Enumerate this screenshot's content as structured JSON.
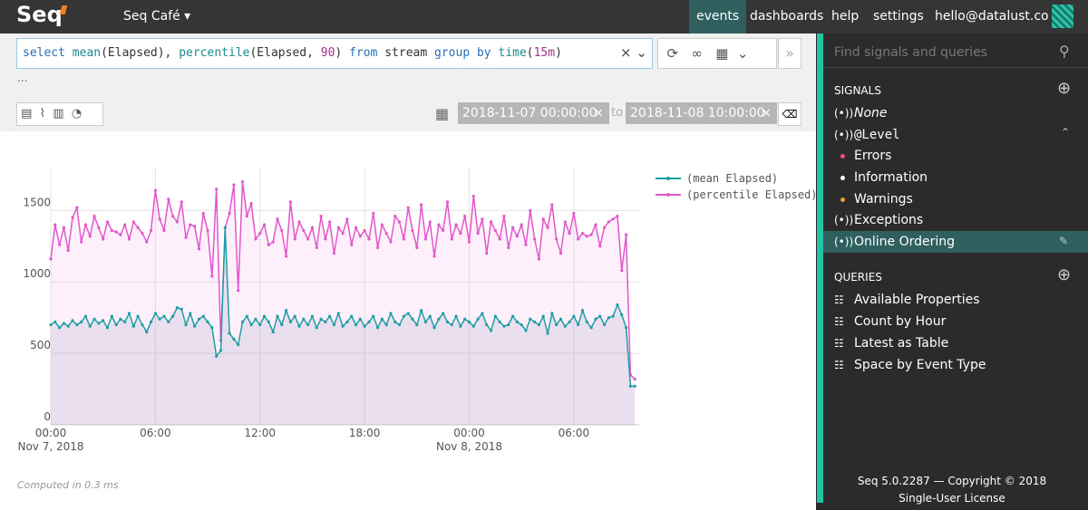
{
  "header": {
    "logo": "Seq",
    "workspace": "Seq Café",
    "nav": [
      "events",
      "dashboards",
      "help",
      "settings",
      "hello@datalust.co"
    ],
    "active_nav": 0
  },
  "query": {
    "tokens": [
      {
        "text": "select",
        "color": "#2a6fb5"
      },
      {
        "text": " ",
        "color": "#333333"
      },
      {
        "text": "mean",
        "color": "#1b8a8f"
      },
      {
        "text": "(Elapsed), ",
        "color": "#333333"
      },
      {
        "text": "percentile",
        "color": "#1b8a8f"
      },
      {
        "text": "(Elapsed, ",
        "color": "#333333"
      },
      {
        "text": "90",
        "color": "#a0308f"
      },
      {
        "text": ") ",
        "color": "#333333"
      },
      {
        "text": "from",
        "color": "#2a6fb5"
      },
      {
        "text": " stream ",
        "color": "#333333"
      },
      {
        "text": "group by",
        "color": "#2a6fb5"
      },
      {
        "text": " ",
        "color": "#333333"
      },
      {
        "text": "time",
        "color": "#1b8a8f"
      },
      {
        "text": "(",
        "color": "#333333"
      },
      {
        "text": "15m",
        "color": "#a0308f"
      },
      {
        "text": ")",
        "color": "#333333"
      }
    ],
    "more": "...",
    "date_from": "2018-11-07 00:00:00",
    "date_sep": "to",
    "date_to": "2018-11-08 10:00:00"
  },
  "chart_data": {
    "type": "line",
    "x": [
      0,
      0.25,
      0.5,
      0.75,
      1,
      1.25,
      1.5,
      1.75,
      2,
      2.25,
      2.5,
      2.75,
      3,
      3.25,
      3.5,
      3.75,
      4,
      4.25,
      4.5,
      4.75,
      5,
      5.25,
      5.5,
      5.75,
      6,
      6.25,
      6.5,
      6.75,
      7,
      7.25,
      7.5,
      7.75,
      8,
      8.25,
      8.5,
      8.75,
      9,
      9.25,
      9.5,
      9.75,
      10,
      10.25,
      10.5,
      10.75,
      11,
      11.25,
      11.5,
      11.75,
      12,
      12.25,
      12.5,
      12.75,
      13,
      13.25,
      13.5,
      13.75,
      14,
      14.25,
      14.5,
      14.75,
      15,
      15.25,
      15.5,
      15.75,
      16,
      16.25,
      16.5,
      16.75,
      17,
      17.25,
      17.5,
      17.75,
      18,
      18.25,
      18.5,
      18.75,
      19,
      19.25,
      19.5,
      19.75,
      20,
      20.25,
      20.5,
      20.75,
      21,
      21.25,
      21.5,
      21.75,
      22,
      22.25,
      22.5,
      22.75,
      23,
      23.25,
      23.5,
      23.75,
      24,
      24.25,
      24.5,
      24.75,
      25,
      25.25,
      25.5,
      25.75,
      26,
      26.25,
      26.5,
      26.75,
      27,
      27.25,
      27.5,
      27.75,
      28,
      28.25,
      28.5,
      28.75,
      29,
      29.25,
      29.5,
      29.75,
      30,
      30.25,
      30.5,
      30.75,
      31,
      31.25,
      31.5,
      31.75,
      32,
      32.25,
      32.5,
      32.75,
      33,
      33.25,
      33.5
    ],
    "series": [
      {
        "name": "(mean Elapsed)",
        "color": "#1f9ea3",
        "fill": "rgba(120,120,180,0.14)",
        "values": [
          700,
          720,
          680,
          710,
          690,
          730,
          700,
          720,
          760,
          690,
          740,
          710,
          730,
          680,
          760,
          700,
          740,
          720,
          780,
          690,
          760,
          700,
          650,
          720,
          780,
          740,
          760,
          720,
          760,
          820,
          810,
          700,
          780,
          690,
          740,
          760,
          720,
          680,
          480,
          520,
          1380,
          640,
          600,
          560,
          720,
          760,
          700,
          740,
          700,
          760,
          720,
          650,
          760,
          700,
          800,
          720,
          760,
          690,
          740,
          700,
          760,
          680,
          740,
          720,
          760,
          700,
          780,
          690,
          720,
          760,
          700,
          740,
          690,
          720,
          760,
          680,
          740,
          700,
          780,
          720,
          700,
          760,
          780,
          740,
          700,
          800,
          720,
          760,
          680,
          740,
          780,
          720,
          700,
          760,
          690,
          740,
          720,
          690,
          740,
          780,
          700,
          660,
          760,
          720,
          690,
          700,
          760,
          720,
          700,
          660,
          740,
          720,
          700,
          760,
          640,
          780,
          700,
          740,
          690,
          720,
          760,
          700,
          800,
          720,
          680,
          740,
          760,
          700,
          750,
          760,
          840,
          770,
          680,
          270,
          270
        ]
      },
      {
        "name": "(percentile Elapsed)",
        "color": "#e357cc",
        "fill": "rgba(240,140,220,0.13)",
        "values": [
          1160,
          1400,
          1260,
          1380,
          1220,
          1450,
          1520,
          1280,
          1400,
          1320,
          1460,
          1380,
          1300,
          1420,
          1360,
          1350,
          1330,
          1400,
          1300,
          1420,
          1380,
          1340,
          1280,
          1360,
          1640,
          1440,
          1360,
          1580,
          1460,
          1420,
          1560,
          1310,
          1400,
          1390,
          1230,
          1480,
          1360,
          1040,
          1650,
          590,
          1380,
          1480,
          1680,
          940,
          1700,
          1460,
          1550,
          1300,
          1340,
          1400,
          1260,
          1280,
          1440,
          1360,
          1180,
          1560,
          1300,
          1420,
          1360,
          1300,
          1380,
          1240,
          1460,
          1300,
          1420,
          1200,
          1380,
          1340,
          1440,
          1260,
          1380,
          1320,
          1360,
          1300,
          1480,
          1240,
          1400,
          1340,
          1280,
          1460,
          1420,
          1300,
          1520,
          1360,
          1240,
          1540,
          1300,
          1420,
          1180,
          1400,
          1360,
          1560,
          1300,
          1400,
          1340,
          1460,
          1280,
          1600,
          1340,
          1440,
          1200,
          1420,
          1360,
          1300,
          1460,
          1240,
          1380,
          1320,
          1400,
          1260,
          1500,
          1300,
          1160,
          1440,
          1380,
          1540,
          1300,
          1200,
          1420,
          1340,
          1480,
          1300,
          1340,
          1320,
          1330,
          1400,
          1250,
          1380,
          1420,
          1440,
          1460,
          1080,
          1330,
          350,
          320
        ]
      }
    ],
    "xlim": [
      0,
      33.75
    ],
    "xticks": [
      {
        "value": 0,
        "label": "00:00"
      },
      {
        "value": 6,
        "label": "06:00"
      },
      {
        "value": 12,
        "label": "12:00"
      },
      {
        "value": 18,
        "label": "18:00"
      },
      {
        "value": 24,
        "label": "00:00"
      },
      {
        "value": 30,
        "label": "06:00"
      }
    ],
    "xtick_dates": [
      {
        "value": 0,
        "label": "Nov 7, 2018"
      },
      {
        "value": 24,
        "label": "Nov 8, 2018"
      }
    ],
    "ylim": [
      0,
      1800
    ],
    "yticks": [
      0,
      500,
      1000,
      1500
    ],
    "grid": true,
    "legend": "right"
  },
  "status": "Computed in 0.3 ms",
  "sidebar": {
    "search": "Find signals and queries",
    "signals_title": "SIGNALS",
    "signals": [
      {
        "label": "None",
        "italic": true
      },
      {
        "label": "@Level",
        "mono": true
      }
    ],
    "levels": [
      {
        "label": "Errors",
        "color": "#e8507a"
      },
      {
        "label": "Information",
        "color": "#ffffff"
      },
      {
        "label": "Warnings",
        "color": "#f0a030"
      }
    ],
    "more_signals": [
      "Exceptions",
      "Online Ordering"
    ],
    "active_signal": 1,
    "queries_title": "QUERIES",
    "queries": [
      "Available Properties",
      "Count by Hour",
      "Latest as Table",
      "Space by Event Type"
    ],
    "footer": [
      "Seq 5.0.2287 — Copyright © 2018",
      "Single-User License"
    ]
  }
}
